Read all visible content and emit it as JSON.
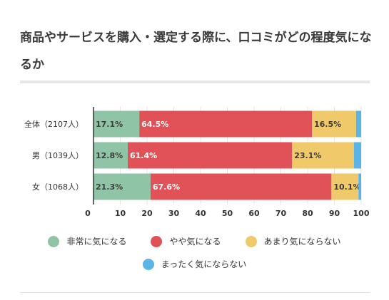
{
  "title": "商品やサービスを購入・選定する際に、口コミがどの程度気になるか",
  "chart_data": {
    "type": "bar",
    "orientation": "horizontal",
    "stacked": true,
    "categories": [
      "全体（2107人）",
      "男（1039人）",
      "女（1068人）"
    ],
    "series": [
      {
        "name": "非常に気になる",
        "color": "#8fc4a6",
        "values": [
          17.1,
          12.8,
          21.3
        ]
      },
      {
        "name": "やや気になる",
        "color": "#e05257",
        "values": [
          64.5,
          61.4,
          67.6
        ]
      },
      {
        "name": "あまり気にならない",
        "color": "#f0ca6a",
        "values": [
          16.5,
          23.1,
          10.1
        ]
      },
      {
        "name": "まったく気にならない",
        "color": "#5ab4e6",
        "values": [
          1.9,
          2.7,
          1.0
        ]
      }
    ],
    "xlim": [
      0,
      100
    ],
    "xticks": [
      0,
      10,
      20,
      30,
      40,
      50,
      60,
      70,
      80,
      90,
      100
    ],
    "label_threshold": 5,
    "grid": true,
    "legend_position": "bottom"
  }
}
